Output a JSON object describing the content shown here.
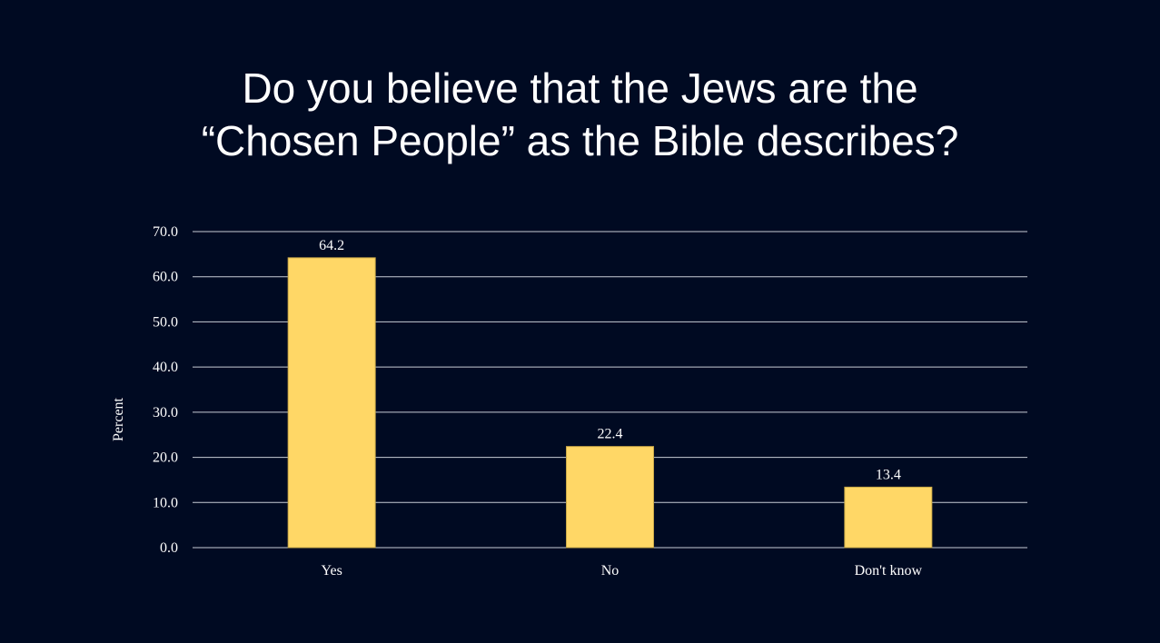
{
  "title": {
    "line1": "Do you believe that the Jews are the",
    "line2": "“Chosen People” as the Bible describes?"
  },
  "chart_data": {
    "type": "bar",
    "categories": [
      "Yes",
      "No",
      "Don't know"
    ],
    "values": [
      64.2,
      22.4,
      13.4
    ],
    "value_labels": [
      "64.2",
      "22.4",
      "13.4"
    ],
    "ylabel": "Percent",
    "xlabel": "",
    "ylim": [
      0,
      70
    ],
    "yticks": [
      "0.0",
      "10.0",
      "20.0",
      "30.0",
      "40.0",
      "50.0",
      "60.0",
      "70.0"
    ],
    "grid": true,
    "legend": "none",
    "colors": {
      "background": "#000a22",
      "bar": "#ffd766",
      "bar_edge": "#c9a848",
      "grid": "#c8ccd6",
      "text": "#ffffff"
    }
  }
}
